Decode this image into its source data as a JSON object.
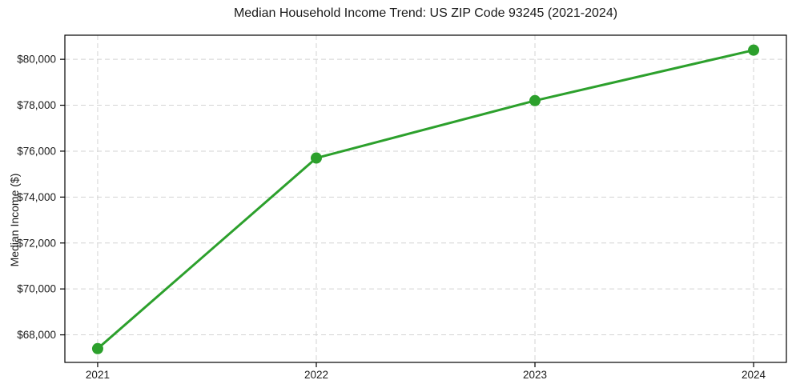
{
  "chart_data": {
    "type": "line",
    "title": "Median Household Income Trend: US ZIP Code 93245 (2021-2024)",
    "xlabel": "",
    "ylabel": "Median Income ($)",
    "x": [
      "2021",
      "2022",
      "2023",
      "2024"
    ],
    "values": [
      67400,
      75700,
      78200,
      80400
    ],
    "xtick_labels": [
      "2021",
      "2022",
      "2023",
      "2024"
    ],
    "yticks": [
      68000,
      70000,
      72000,
      74000,
      76000,
      78000,
      80000
    ],
    "ytick_labels": [
      "$68,000",
      "$70,000",
      "$72,000",
      "$74,000",
      "$76,000",
      "$78,000",
      "$80,000"
    ],
    "ylim": [
      66800,
      81050
    ],
    "grid": true,
    "grid_line_style": "dashed",
    "legend_position": "none",
    "colors": {
      "line": "#2ca02c",
      "marker": "#2ca02c",
      "grid": "#d3d3d3",
      "spine": "#000000",
      "text": "#1a1a1a",
      "background": "#ffffff"
    }
  }
}
